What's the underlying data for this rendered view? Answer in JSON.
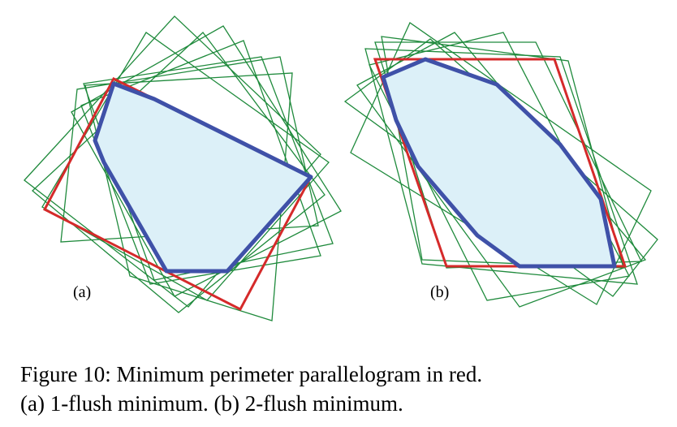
{
  "panels": [
    {
      "label": "(a)"
    },
    {
      "label": "(b)"
    }
  ],
  "caption": {
    "lines": [
      "Figure 10:  Minimum perimeter parallelogram in red.",
      "(a) 1-flush minimum. (b) 2-flush minimum."
    ]
  }
}
